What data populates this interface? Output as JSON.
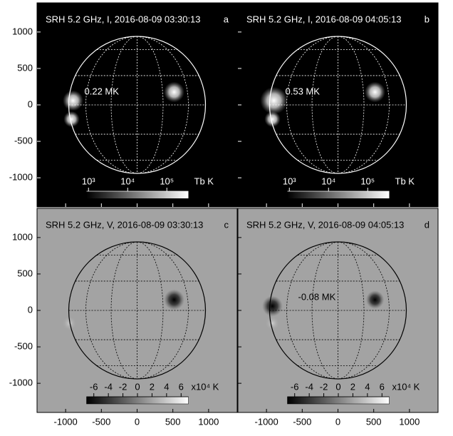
{
  "figure": {
    "xlim": [
      -1400,
      1400
    ],
    "ylim": [
      -1400,
      1400
    ],
    "xticks": [
      -1000,
      -500,
      0,
      500,
      1000
    ],
    "yticks": [
      1000,
      500,
      0,
      -500,
      -1000
    ],
    "panels": [
      {
        "title": "SRH 5.2 GHz, I, 2016-08-09 03:30:13",
        "letter": "a",
        "annotation": "0.22 MK",
        "colorbar": {
          "lim": [
            2.95,
            5.55
          ],
          "ticks": [
            {
              "value": 3,
              "label": "10³"
            },
            {
              "value": 4,
              "label": "10⁴"
            },
            {
              "value": 5,
              "label": "10⁵"
            }
          ],
          "unit": "Tb K"
        }
      },
      {
        "title": "SRH 5.2 GHz, I, 2016-08-09 04:05:13",
        "letter": "b",
        "annotation": "0.53 MK",
        "colorbar": {
          "lim": [
            2.95,
            5.55
          ],
          "ticks": [
            {
              "value": 3,
              "label": "10³"
            },
            {
              "value": 4,
              "label": "10⁴"
            },
            {
              "value": 5,
              "label": "10⁵"
            }
          ],
          "unit": "Tb K"
        }
      },
      {
        "title": "SRH 5.2 GHz, V, 2016-08-09 03:30:13",
        "letter": "c",
        "colorbar": {
          "lim": [
            -7,
            7
          ],
          "ticks": [
            -6,
            -4,
            -2,
            0,
            2,
            4,
            6
          ],
          "unit": "x10⁴ K"
        }
      },
      {
        "title": "SRH 5.2 GHz, V, 2016-08-09 04:05:13",
        "letter": "d",
        "annotation": "-0.08 MK",
        "colorbar": {
          "lim": [
            -7,
            7
          ],
          "ticks": [
            -6,
            -4,
            -2,
            0,
            2,
            4,
            6
          ],
          "unit": "x10⁴ K"
        }
      }
    ]
  }
}
